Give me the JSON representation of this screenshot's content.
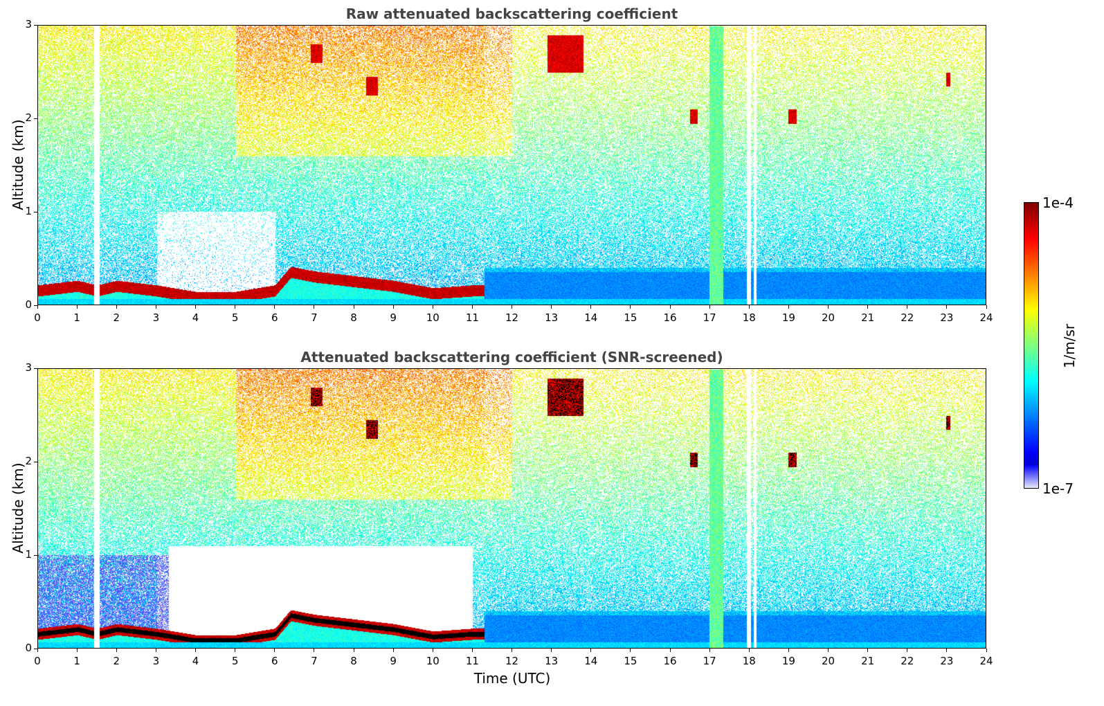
{
  "colors": {
    "low": "#e6e6fa",
    "mid_blue": "#0000ff",
    "cyan": "#00ffff",
    "green": "#80ff80",
    "yellow": "#ffff00",
    "red": "#ff0000",
    "high": "#800000",
    "title_gray": "#444444"
  },
  "colorbar": {
    "max_label": "1e-4",
    "min_label": "1e-7",
    "unit": "1/m/sr",
    "scale": "log",
    "colormap": "jet"
  },
  "xlabel": "Time (UTC)",
  "chart_data": [
    {
      "type": "heatmap",
      "title": "Raw attenuated backscattering coefficient",
      "xlabel": "",
      "ylabel": "Altitude (km)",
      "xlim": [
        0,
        24
      ],
      "ylim": [
        0,
        3
      ],
      "x_ticks": [
        "0",
        "1",
        "2",
        "3",
        "4",
        "5",
        "6",
        "7",
        "8",
        "9",
        "10",
        "11",
        "12",
        "13",
        "14",
        "15",
        "16",
        "17",
        "18",
        "19",
        "20",
        "21",
        "22",
        "23",
        "24"
      ],
      "y_ticks": [
        "0",
        "1",
        "2",
        "3"
      ],
      "boundary_layer_top_km": [
        {
          "t": 0,
          "h": 0.15
        },
        {
          "t": 1,
          "h": 0.2
        },
        {
          "t": 1.5,
          "h": 0.15
        },
        {
          "t": 2,
          "h": 0.2
        },
        {
          "t": 3,
          "h": 0.15
        },
        {
          "t": 4,
          "h": 0.08
        },
        {
          "t": 5,
          "h": 0.08
        },
        {
          "t": 6,
          "h": 0.15
        },
        {
          "t": 6.4,
          "h": 0.35
        },
        {
          "t": 7,
          "h": 0.3
        },
        {
          "t": 8,
          "h": 0.25
        },
        {
          "t": 9,
          "h": 0.2
        },
        {
          "t": 10,
          "h": 0.12
        },
        {
          "t": 11,
          "h": 0.15
        }
      ]
    },
    {
      "type": "heatmap",
      "title": "Attenuated backscattering coefficient (SNR-screened)",
      "xlabel": "Time (UTC)",
      "ylabel": "Altitude (km)",
      "xlim": [
        0,
        24
      ],
      "ylim": [
        0,
        3
      ],
      "x_ticks": [
        "0",
        "1",
        "2",
        "3",
        "4",
        "5",
        "6",
        "7",
        "8",
        "9",
        "10",
        "11",
        "12",
        "13",
        "14",
        "15",
        "16",
        "17",
        "18",
        "19",
        "20",
        "21",
        "22",
        "23",
        "24"
      ],
      "y_ticks": [
        "0",
        "1",
        "2",
        "3"
      ]
    }
  ]
}
